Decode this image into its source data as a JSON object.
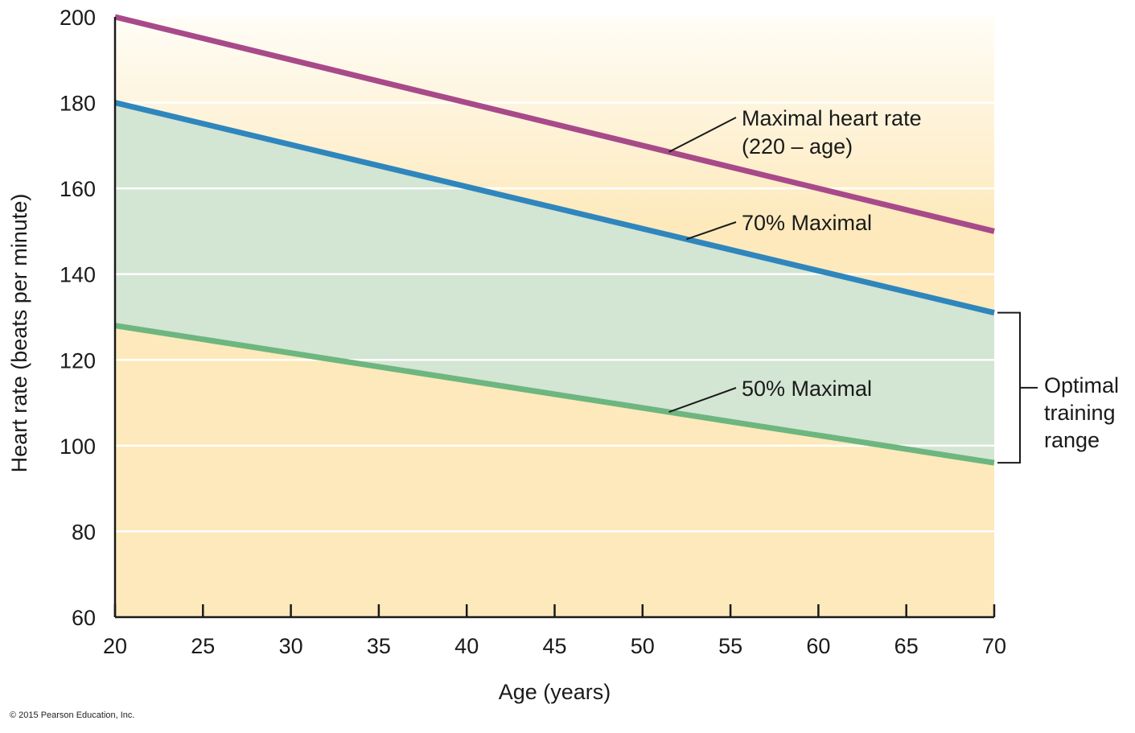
{
  "chart_data": {
    "type": "line",
    "xlabel": "Age (years)",
    "ylabel": "Heart rate (beats per minute)",
    "xlim": [
      20,
      70
    ],
    "ylim": [
      60,
      200
    ],
    "x_ticks": [
      20,
      25,
      30,
      35,
      40,
      45,
      50,
      55,
      60,
      65,
      70
    ],
    "y_ticks": [
      60,
      80,
      100,
      120,
      140,
      160,
      180,
      200
    ],
    "grid": "horizontal",
    "x": [
      20,
      70
    ],
    "series": [
      {
        "name": "Maximal heart rate (220 – age)",
        "values": [
          200,
          150
        ],
        "color": "#a84a8a",
        "label_lines": [
          "Maximal heart rate",
          "(220 – age)"
        ],
        "label_anchor_x": 51.5
      },
      {
        "name": "70% Maximal",
        "values": [
          180,
          131
        ],
        "color": "#2f86bd",
        "label_lines": [
          "70% Maximal"
        ],
        "label_anchor_x": 52.5
      },
      {
        "name": "50% Maximal",
        "values": [
          128,
          96
        ],
        "color": "#6db67f",
        "label_lines": [
          "50% Maximal"
        ],
        "label_anchor_x": 51.5
      }
    ],
    "shaded_band": {
      "between": [
        "50% Maximal",
        "70% Maximal"
      ],
      "color": "#d3e5d3"
    },
    "background_gradient": {
      "top": "#fffdf7",
      "bottom": "#fde9bb"
    },
    "bracket_label_lines": [
      "Optimal",
      "training",
      "range"
    ],
    "bracket_range": [
      96,
      131
    ]
  },
  "copyright": "© 2015 Pearson Education, Inc."
}
